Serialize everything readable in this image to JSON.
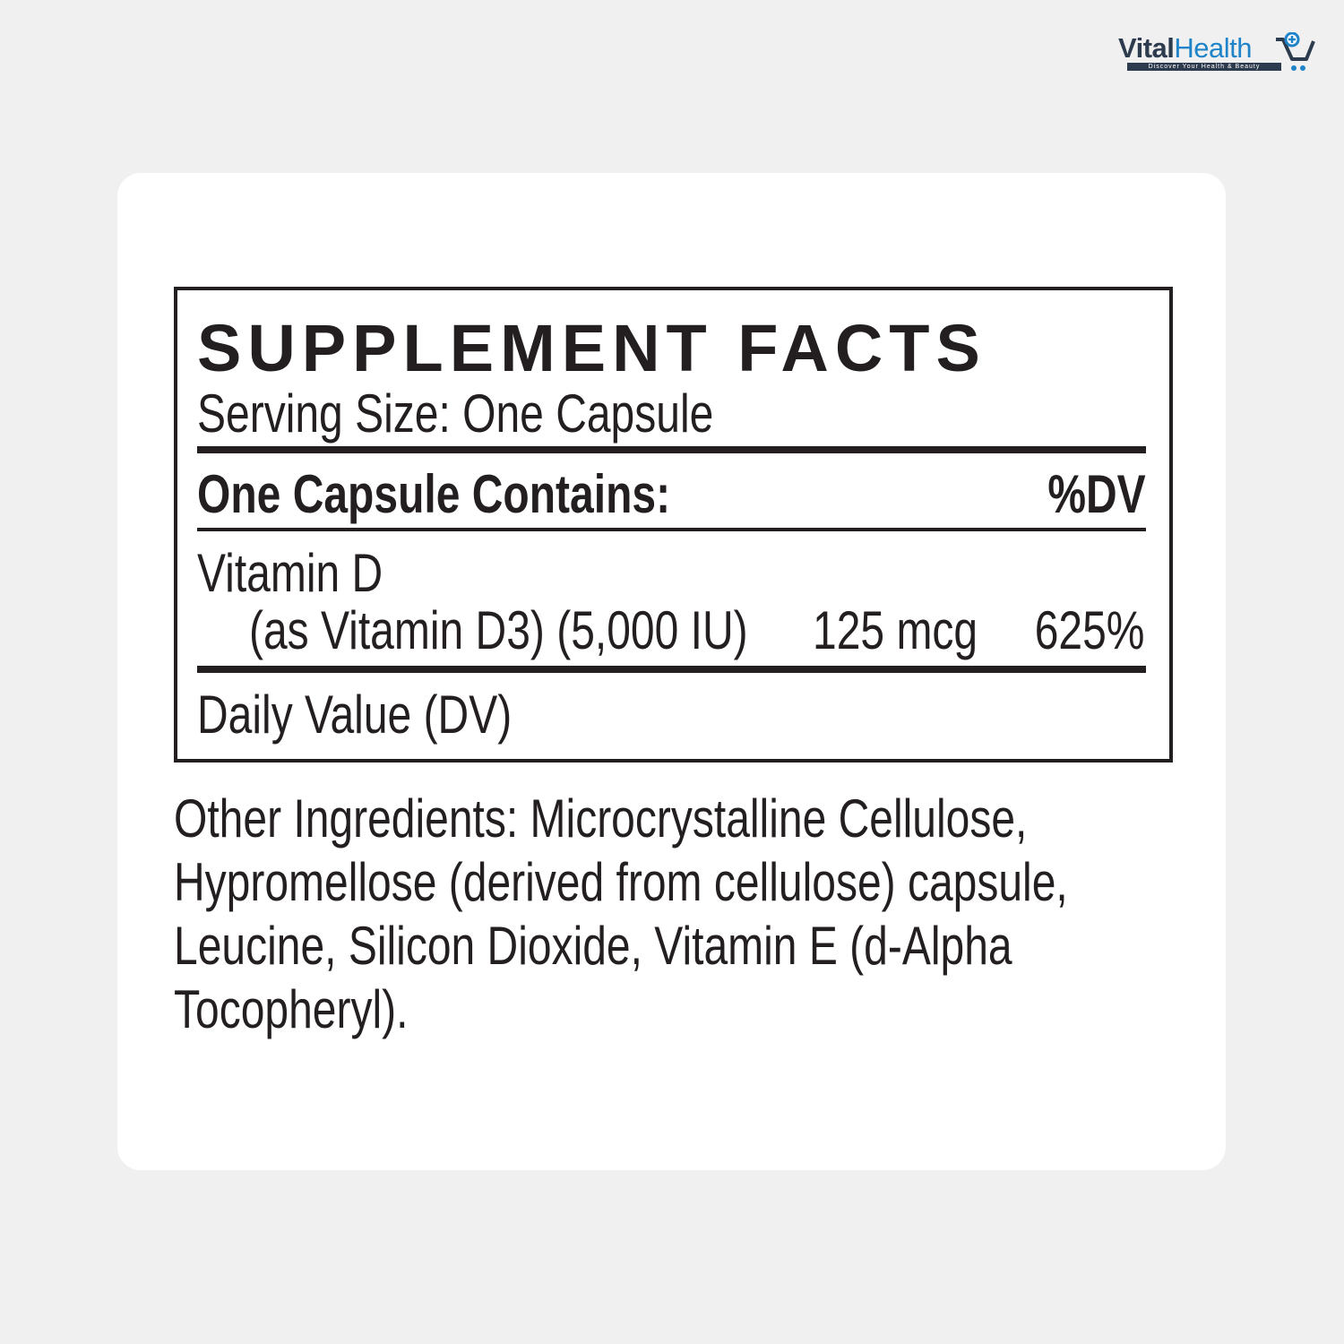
{
  "logo": {
    "word1": "Vital",
    "word2": "Health",
    "tagline": "Discover Your Health & Beauty",
    "colors": {
      "dark": "#2d3b4e",
      "blue": "#1f83c9"
    }
  },
  "facts": {
    "title": "SUPPLEMENT FACTS",
    "serving_size": "Serving Size: One Capsule",
    "header_left": "One Capsule Contains:",
    "header_right": "%DV",
    "rows": [
      {
        "name": "Vitamin D",
        "detail": "(as Vitamin D3) (5,000 IU)",
        "amount": "125 mcg",
        "dv": "625%"
      }
    ],
    "footnote": "Daily Value (DV)"
  },
  "other_ingredients": [
    "Other Ingredients: Microcrystalline Cellulose,",
    "Hypromellose (derived from cellulose) capsule,",
    "Leucine, Silicon Dioxide, Vitamin E (d-Alpha",
    "Tocopheryl)."
  ]
}
